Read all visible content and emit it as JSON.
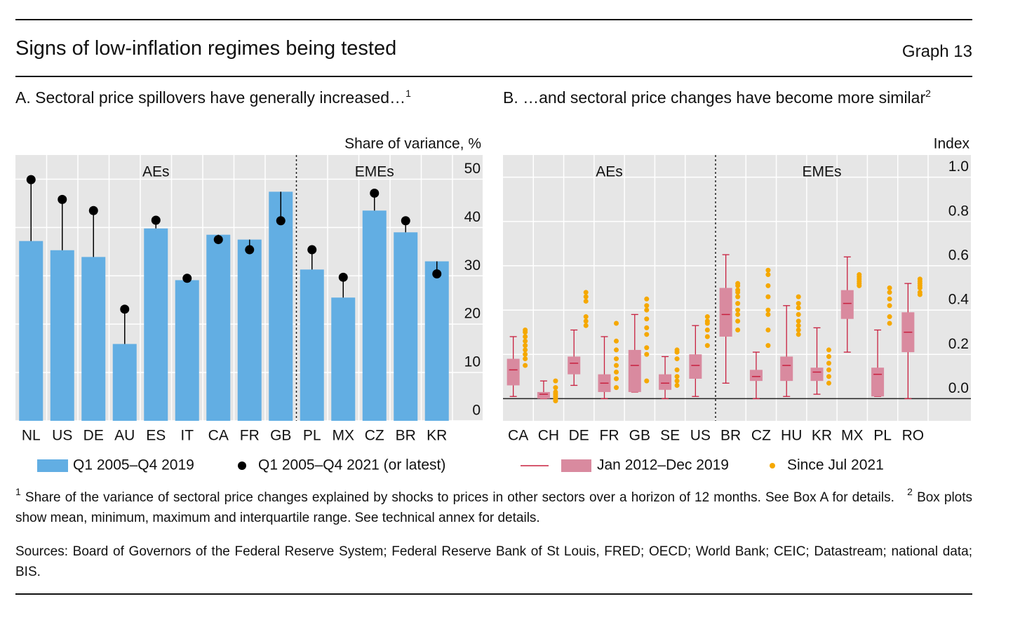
{
  "header": {
    "title": "Signs of low-inflation regimes being tested",
    "label": "Graph 13"
  },
  "chart_data": [
    {
      "type": "bar",
      "title": "A. Sectoral price spillovers have generally increased…",
      "title_note": "1",
      "y_label": "Share of variance, %",
      "groups": [
        {
          "name": "AEs",
          "categories": [
            "NL",
            "US",
            "DE",
            "AU",
            "ES",
            "IT",
            "CA",
            "FR",
            "GB"
          ]
        },
        {
          "name": "EMEs",
          "categories": [
            "PL",
            "MX",
            "CZ",
            "BR",
            "KR"
          ]
        }
      ],
      "series": [
        {
          "name": "Q1 2005–Q4 2019",
          "color": "#62aee3",
          "values": [
            37.2,
            35.3,
            33.9,
            15.9,
            39.8,
            29.1,
            38.5,
            37.5,
            47.4,
            31.3,
            25.5,
            43.5,
            39.0,
            33.0
          ]
        },
        {
          "name": "Q1 2005–Q4 2021 (or latest)",
          "color": "#000000",
          "marker": "dot",
          "values": [
            49.9,
            45.8,
            43.5,
            23.1,
            41.5,
            29.5,
            37.5,
            35.4,
            41.4,
            35.4,
            29.7,
            47.1,
            41.4,
            30.4
          ]
        }
      ],
      "ylim": [
        0,
        55
      ],
      "yticks": [
        0,
        10,
        20,
        30,
        40,
        50
      ],
      "grid": true
    },
    {
      "type": "box",
      "title": "B. …and sectoral price changes have become more similar",
      "title_note": "2",
      "y_label": "Index",
      "groups": [
        {
          "name": "AEs",
          "categories": [
            "CA",
            "CH",
            "DE",
            "FR",
            "GB",
            "SE",
            "US"
          ]
        },
        {
          "name": "EMEs",
          "categories": [
            "BR",
            "CZ",
            "HU",
            "KR",
            "MX",
            "PL",
            "RO"
          ]
        }
      ],
      "series": [
        {
          "name": "Jan 2012–Dec 2019",
          "color": "#d98a9f",
          "line_color": "#c8203f",
          "min": [
            0.01,
            0.0,
            0.06,
            0.0,
            0.03,
            0.0,
            0.01,
            0.07,
            0.0,
            0.01,
            0.02,
            0.21,
            0.01,
            0.0
          ],
          "q1": [
            0.06,
            0.0,
            0.11,
            0.03,
            0.03,
            0.04,
            0.09,
            0.28,
            0.08,
            0.08,
            0.08,
            0.36,
            0.01,
            0.21
          ],
          "mean": [
            0.13,
            0.02,
            0.16,
            0.07,
            0.15,
            0.07,
            0.15,
            0.38,
            0.1,
            0.15,
            0.12,
            0.43,
            0.11,
            0.3
          ],
          "q3": [
            0.18,
            0.03,
            0.19,
            0.11,
            0.22,
            0.11,
            0.2,
            0.5,
            0.13,
            0.19,
            0.14,
            0.49,
            0.14,
            0.39
          ],
          "max": [
            0.28,
            0.08,
            0.31,
            0.28,
            0.38,
            0.19,
            0.33,
            0.65,
            0.21,
            0.42,
            0.32,
            0.64,
            0.31,
            0.52
          ]
        },
        {
          "name": "Since Jul 2021",
          "color": "#f5a800",
          "marker": "dot",
          "values": [
            [
              0.15,
              0.18,
              0.2,
              0.22,
              0.24,
              0.26,
              0.28,
              0.3,
              0.31
            ],
            [
              -0.01,
              0.0,
              0.01,
              0.02,
              0.03,
              0.05,
              0.08
            ],
            [
              0.33,
              0.35,
              0.37,
              0.44,
              0.46,
              0.48
            ],
            [
              0.05,
              0.09,
              0.12,
              0.15,
              0.18,
              0.22,
              0.26,
              0.34
            ],
            [
              0.08,
              0.2,
              0.23,
              0.29,
              0.32,
              0.36,
              0.4,
              0.42,
              0.45
            ],
            [
              0.06,
              0.08,
              0.1,
              0.13,
              0.18,
              0.21,
              0.22
            ],
            [
              0.24,
              0.28,
              0.31,
              0.34,
              0.35,
              0.37
            ],
            [
              0.31,
              0.35,
              0.38,
              0.4,
              0.43,
              0.46,
              0.48,
              0.49,
              0.51,
              0.52
            ],
            [
              0.24,
              0.31,
              0.38,
              0.4,
              0.46,
              0.51,
              0.56,
              0.58
            ],
            [
              0.29,
              0.31,
              0.33,
              0.35,
              0.38,
              0.41,
              0.43,
              0.46
            ],
            [
              0.07,
              0.1,
              0.13,
              0.16,
              0.19,
              0.22
            ],
            [
              0.51,
              0.52,
              0.53,
              0.54,
              0.55,
              0.56
            ],
            [
              0.34,
              0.37,
              0.42,
              0.45,
              0.48,
              0.5
            ],
            [
              0.47,
              0.48,
              0.5,
              0.51,
              0.52,
              0.53,
              0.54
            ]
          ]
        }
      ],
      "ylim": [
        -0.1,
        1.1
      ],
      "yticks": [
        {
          "value": 0,
          "label": "0.0"
        },
        0.2,
        0.4,
        0.6,
        0.8,
        {
          "value": 1,
          "label": "1.0"
        }
      ],
      "grid": true
    }
  ],
  "footnotes": [
    {
      "mark": "1",
      "text": "Share of the variance of sectoral price changes explained by shocks to prices in other sectors over a horizon of 12 months. See Box A for details."
    },
    {
      "mark": "2",
      "text": "Box plots show mean, minimum, maximum and interquartile range. See technical annex for details."
    }
  ],
  "sources": "Sources: Board of Governors of the Federal Reserve System; Federal Reserve Bank of St Louis, FRED; OECD; World Bank; CEIC; Datastream; national data; BIS."
}
